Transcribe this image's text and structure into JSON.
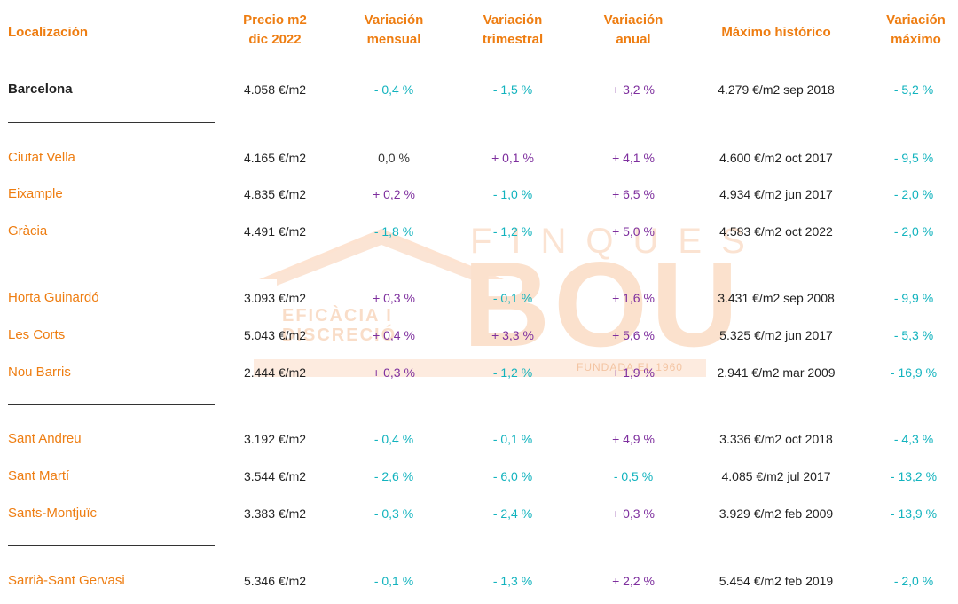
{
  "watermark": {
    "word": "FINQUES",
    "brand": "BOU",
    "tagline_1": "EFICÀCIA I",
    "tagline_2": "DISCRECIÓ",
    "founded": "FUNDADA EL 1960"
  },
  "headers": {
    "location": "Localización",
    "price_1": "Precio m2",
    "price_2": "dic 2022",
    "monthly_1": "Variación",
    "monthly_2": "mensual",
    "quarterly_1": "Variación",
    "quarterly_2": "trimestral",
    "annual_1": "Variación",
    "annual_2": "anual",
    "max": "Máximo histórico",
    "max_var_1": "Variación",
    "max_var_2": "máximo"
  },
  "rows": [
    {
      "name": "Barcelona",
      "price": "4.058 €/m2",
      "monthly": "- 0,4 %",
      "quarterly": "- 1,5 %",
      "annual": "+ 3,2 %",
      "max": "4.279 €/m2 sep 2018",
      "max_var": "- 5,2 %"
    },
    {
      "name": "Ciutat Vella",
      "price": "4.165 €/m2",
      "monthly": "0,0 %",
      "quarterly": "+ 0,1 %",
      "annual": "+ 4,1 %",
      "max": "4.600 €/m2 oct 2017",
      "max_var": "- 9,5 %"
    },
    {
      "name": "Eixample",
      "price": "4.835 €/m2",
      "monthly": "+ 0,2 %",
      "quarterly": "- 1,0 %",
      "annual": "+ 6,5 %",
      "max": "4.934 €/m2 jun 2017",
      "max_var": "- 2,0 %"
    },
    {
      "name": "Gràcia",
      "price": "4.491 €/m2",
      "monthly": "- 1,8 %",
      "quarterly": "- 1,2 %",
      "annual": "+ 5,0 %",
      "max": "4.583 €/m2 oct 2022",
      "max_var": "- 2,0 %"
    },
    {
      "name": "Horta Guinardó",
      "price": "3.093 €/m2",
      "monthly": "+ 0,3 %",
      "quarterly": "- 0,1 %",
      "annual": "+ 1,6 %",
      "max": "3.431 €/m2 sep 2008",
      "max_var": "- 9,9 %"
    },
    {
      "name": "Les Corts",
      "price": "5.043 €/m2",
      "monthly": "+ 0,4 %",
      "quarterly": "+ 3,3 %",
      "annual": "+ 5,6 %",
      "max": "5.325 €/m2 jun 2017",
      "max_var": "- 5,3 %"
    },
    {
      "name": "Nou Barris",
      "price": "2.444 €/m2",
      "monthly": "+ 0,3 %",
      "quarterly": "- 1,2 %",
      "annual": "+ 1,9 %",
      "max": "2.941 €/m2 mar 2009",
      "max_var": "- 16,9 %"
    },
    {
      "name": "Sant Andreu",
      "price": "3.192 €/m2",
      "monthly": "- 0,4 %",
      "quarterly": "- 0,1 %",
      "annual": "+ 4,9 %",
      "max": "3.336 €/m2 oct 2018",
      "max_var": "- 4,3 %"
    },
    {
      "name": "Sant Martí",
      "price": "3.544 €/m2",
      "monthly": "- 2,6 %",
      "quarterly": "- 6,0 %",
      "annual": "- 0,5 %",
      "max": "4.085 €/m2 jul 2017",
      "max_var": "- 13,2 %"
    },
    {
      "name": "Sants-Montjuïc",
      "price": "3.383 €/m2",
      "monthly": "- 0,3 %",
      "quarterly": "- 2,4 %",
      "annual": "+ 0,3 %",
      "max": "3.929 €/m2 feb 2009",
      "max_var": "- 13,9 %"
    },
    {
      "name": "Sarrià-Sant Gervasi",
      "price": "5.346 €/m2",
      "monthly": "- 0,1 %",
      "quarterly": "- 1,3 %",
      "annual": "+ 2,2 %",
      "max": "5.454 €/m2 feb 2019",
      "max_var": "- 2,0 %"
    }
  ],
  "colors": {
    "header": "#ee7d11",
    "district": "#ee7d11",
    "negative": "#12b3be",
    "positive": "#7e2f9e",
    "separator": "#333333",
    "watermark": "#fbe1cd"
  }
}
